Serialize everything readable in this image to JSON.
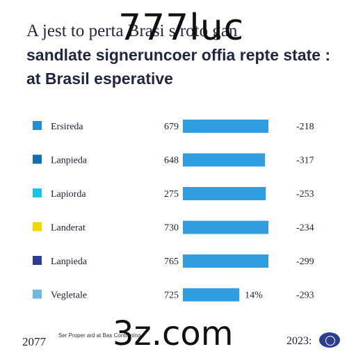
{
  "title": {
    "line1": "A jest to perta    Brasi    s roto gan",
    "line2": "sandlate signeruncoer offia repte state :",
    "line3": "at Brasil esperative"
  },
  "watermark_top": "777luc",
  "watermark_bottom": "3z.com",
  "footer": {
    "left": "2077",
    "note": "Ser Proper ard at Bas Contriming",
    "right": "2023:"
  },
  "colors": {
    "bar": "#2e9ee0"
  },
  "chart_data": {
    "type": "bar",
    "orientation": "horizontal",
    "categories": [
      "Ersireda",
      "Lanpieda",
      "Lapiorda",
      "Landerat",
      "Lanpieda",
      "Vegletale"
    ],
    "values": [
      679,
      648,
      275,
      730,
      765,
      725
    ],
    "end_labels": [
      "-218",
      "-317",
      "-253",
      "-234",
      "-299",
      "-293"
    ],
    "bar_annotations": [
      "",
      "",
      "",
      "",
      "",
      "14%"
    ],
    "bar_fill": [
      1.0,
      0.96,
      0.97,
      1.0,
      1.0,
      0.66
    ],
    "marker_colors": [
      "#1f8fd6",
      "#0f6fb0",
      "#16c4e6",
      "#f2d600",
      "#2b3d96",
      "#6fb8e0"
    ]
  }
}
